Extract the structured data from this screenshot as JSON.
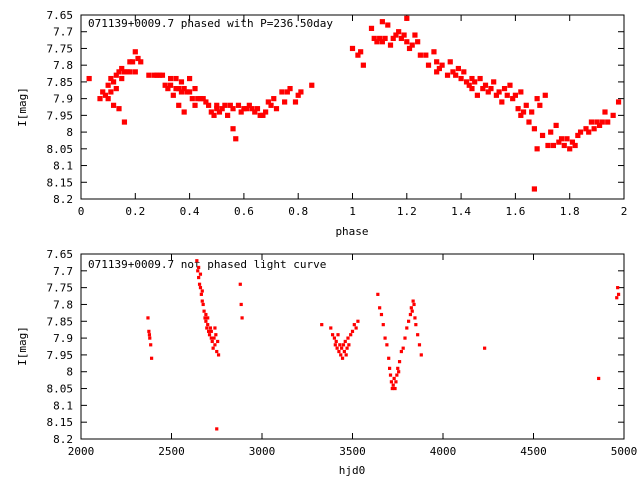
{
  "chart_data": [
    {
      "type": "scatter",
      "title": "071139+0009.7 phased with P=236.50day",
      "xlabel": "phase",
      "ylabel": "I[mag]",
      "xlim": [
        0,
        2
      ],
      "ylim": [
        8.2,
        7.65
      ],
      "y_inverted": true,
      "x_ticks": [
        0,
        0.2,
        0.4,
        0.6,
        0.8,
        1,
        1.2,
        1.4,
        1.6,
        1.8,
        2
      ],
      "x_tick_labels": [
        "0",
        "0.2",
        "0.4",
        "0.6",
        "0.8",
        "1",
        "1.2",
        "1.4",
        "1.6",
        "1.8",
        "2"
      ],
      "y_ticks": [
        7.65,
        7.7,
        7.75,
        7.8,
        7.85,
        7.9,
        7.95,
        8,
        8.05,
        8.1,
        8.15,
        8.2
      ],
      "y_tick_labels": [
        "7.65",
        "7.7",
        "7.75",
        "7.8",
        "7.85",
        "7.9",
        "7.95",
        "8",
        "8.05",
        "8.1",
        "8.15",
        "8.2"
      ],
      "marker_color": "#ff0000",
      "grid": false,
      "points": [
        [
          0.03,
          7.84
        ],
        [
          0.07,
          7.9
        ],
        [
          0.08,
          7.88
        ],
        [
          0.09,
          7.89
        ],
        [
          0.1,
          7.86
        ],
        [
          0.1,
          7.9
        ],
        [
          0.11,
          7.84
        ],
        [
          0.11,
          7.88
        ],
        [
          0.12,
          7.92
        ],
        [
          0.12,
          7.85
        ],
        [
          0.13,
          7.83
        ],
        [
          0.13,
          7.87
        ],
        [
          0.14,
          7.82
        ],
        [
          0.14,
          7.93
        ],
        [
          0.15,
          7.81
        ],
        [
          0.15,
          7.84
        ],
        [
          0.16,
          7.82
        ],
        [
          0.16,
          7.97
        ],
        [
          0.17,
          7.82
        ],
        [
          0.18,
          7.79
        ],
        [
          0.18,
          7.82
        ],
        [
          0.19,
          7.79
        ],
        [
          0.2,
          7.82
        ],
        [
          0.2,
          7.76
        ],
        [
          0.21,
          7.78
        ],
        [
          0.22,
          7.79
        ],
        [
          0.25,
          7.83
        ],
        [
          0.27,
          7.83
        ],
        [
          0.28,
          7.83
        ],
        [
          0.29,
          7.83
        ],
        [
          0.3,
          7.83
        ],
        [
          0.31,
          7.86
        ],
        [
          0.32,
          7.87
        ],
        [
          0.33,
          7.84
        ],
        [
          0.33,
          7.86
        ],
        [
          0.34,
          7.89
        ],
        [
          0.35,
          7.84
        ],
        [
          0.35,
          7.87
        ],
        [
          0.36,
          7.87
        ],
        [
          0.36,
          7.92
        ],
        [
          0.37,
          7.88
        ],
        [
          0.37,
          7.85
        ],
        [
          0.38,
          7.94
        ],
        [
          0.38,
          7.87
        ],
        [
          0.39,
          7.88
        ],
        [
          0.4,
          7.84
        ],
        [
          0.4,
          7.88
        ],
        [
          0.41,
          7.9
        ],
        [
          0.42,
          7.87
        ],
        [
          0.42,
          7.92
        ],
        [
          0.43,
          7.9
        ],
        [
          0.44,
          7.9
        ],
        [
          0.45,
          7.9
        ],
        [
          0.46,
          7.91
        ],
        [
          0.47,
          7.92
        ],
        [
          0.48,
          7.94
        ],
        [
          0.49,
          7.95
        ],
        [
          0.5,
          7.93
        ],
        [
          0.5,
          7.92
        ],
        [
          0.51,
          7.94
        ],
        [
          0.52,
          7.93
        ],
        [
          0.53,
          7.92
        ],
        [
          0.54,
          7.95
        ],
        [
          0.55,
          7.92
        ],
        [
          0.56,
          7.93
        ],
        [
          0.56,
          7.99
        ],
        [
          0.57,
          8.02
        ],
        [
          0.58,
          7.92
        ],
        [
          0.59,
          7.94
        ],
        [
          0.6,
          7.93
        ],
        [
          0.61,
          7.93
        ],
        [
          0.62,
          7.92
        ],
        [
          0.63,
          7.93
        ],
        [
          0.64,
          7.94
        ],
        [
          0.65,
          7.93
        ],
        [
          0.66,
          7.95
        ],
        [
          0.67,
          7.95
        ],
        [
          0.68,
          7.94
        ],
        [
          0.69,
          7.91
        ],
        [
          0.7,
          7.92
        ],
        [
          0.71,
          7.9
        ],
        [
          0.72,
          7.93
        ],
        [
          0.74,
          7.88
        ],
        [
          0.75,
          7.91
        ],
        [
          0.76,
          7.88
        ],
        [
          0.77,
          7.87
        ],
        [
          0.79,
          7.91
        ],
        [
          0.8,
          7.89
        ],
        [
          0.81,
          7.88
        ],
        [
          0.85,
          7.86
        ],
        [
          1.0,
          7.75
        ],
        [
          1.02,
          7.77
        ],
        [
          1.03,
          7.76
        ],
        [
          1.04,
          7.8
        ],
        [
          1.07,
          7.69
        ],
        [
          1.08,
          7.72
        ],
        [
          1.09,
          7.73
        ],
        [
          1.1,
          7.72
        ],
        [
          1.11,
          7.67
        ],
        [
          1.11,
          7.73
        ],
        [
          1.12,
          7.72
        ],
        [
          1.13,
          7.68
        ],
        [
          1.14,
          7.74
        ],
        [
          1.15,
          7.72
        ],
        [
          1.16,
          7.71
        ],
        [
          1.17,
          7.7
        ],
        [
          1.18,
          7.72
        ],
        [
          1.19,
          7.71
        ],
        [
          1.2,
          7.73
        ],
        [
          1.2,
          7.66
        ],
        [
          1.21,
          7.75
        ],
        [
          1.22,
          7.74
        ],
        [
          1.23,
          7.71
        ],
        [
          1.24,
          7.73
        ],
        [
          1.25,
          7.77
        ],
        [
          1.27,
          7.77
        ],
        [
          1.28,
          7.8
        ],
        [
          1.3,
          7.76
        ],
        [
          1.31,
          7.79
        ],
        [
          1.31,
          7.82
        ],
        [
          1.32,
          7.81
        ],
        [
          1.33,
          7.8
        ],
        [
          1.35,
          7.83
        ],
        [
          1.36,
          7.79
        ],
        [
          1.37,
          7.82
        ],
        [
          1.38,
          7.83
        ],
        [
          1.39,
          7.81
        ],
        [
          1.4,
          7.84
        ],
        [
          1.41,
          7.82
        ],
        [
          1.42,
          7.85
        ],
        [
          1.43,
          7.86
        ],
        [
          1.44,
          7.84
        ],
        [
          1.44,
          7.87
        ],
        [
          1.45,
          7.85
        ],
        [
          1.46,
          7.89
        ],
        [
          1.47,
          7.84
        ],
        [
          1.48,
          7.87
        ],
        [
          1.49,
          7.86
        ],
        [
          1.5,
          7.88
        ],
        [
          1.51,
          7.87
        ],
        [
          1.52,
          7.85
        ],
        [
          1.53,
          7.89
        ],
        [
          1.54,
          7.88
        ],
        [
          1.55,
          7.91
        ],
        [
          1.56,
          7.87
        ],
        [
          1.57,
          7.89
        ],
        [
          1.58,
          7.86
        ],
        [
          1.59,
          7.9
        ],
        [
          1.6,
          7.89
        ],
        [
          1.61,
          7.93
        ],
        [
          1.62,
          7.88
        ],
        [
          1.62,
          7.95
        ],
        [
          1.63,
          7.94
        ],
        [
          1.64,
          7.92
        ],
        [
          1.65,
          7.97
        ],
        [
          1.66,
          7.94
        ],
        [
          1.67,
          7.99
        ],
        [
          1.67,
          8.17
        ],
        [
          1.68,
          7.9
        ],
        [
          1.68,
          8.05
        ],
        [
          1.69,
          7.92
        ],
        [
          1.7,
          8.01
        ],
        [
          1.71,
          7.89
        ],
        [
          1.72,
          8.04
        ],
        [
          1.73,
          8.0
        ],
        [
          1.74,
          8.04
        ],
        [
          1.75,
          7.98
        ],
        [
          1.76,
          8.03
        ],
        [
          1.77,
          8.02
        ],
        [
          1.78,
          8.04
        ],
        [
          1.79,
          8.02
        ],
        [
          1.8,
          8.05
        ],
        [
          1.81,
          8.03
        ],
        [
          1.82,
          8.04
        ],
        [
          1.83,
          8.01
        ],
        [
          1.84,
          8.0
        ],
        [
          1.86,
          7.99
        ],
        [
          1.87,
          8.0
        ],
        [
          1.88,
          7.97
        ],
        [
          1.89,
          7.99
        ],
        [
          1.9,
          7.97
        ],
        [
          1.91,
          7.98
        ],
        [
          1.92,
          7.97
        ],
        [
          1.93,
          7.94
        ],
        [
          1.94,
          7.97
        ],
        [
          1.96,
          7.95
        ],
        [
          1.98,
          7.91
        ]
      ]
    },
    {
      "type": "scatter",
      "title": "071139+0009.7 not phased light curve",
      "xlabel": "hjd0",
      "ylabel": "I[mag]",
      "xlim": [
        2000,
        5000
      ],
      "ylim": [
        8.2,
        7.65
      ],
      "y_inverted": true,
      "x_ticks": [
        2000,
        2500,
        3000,
        3500,
        4000,
        4500,
        5000
      ],
      "x_tick_labels": [
        "2000",
        "2500",
        "3000",
        "3500",
        "4000",
        "4500",
        "5000"
      ],
      "y_ticks": [
        7.65,
        7.7,
        7.75,
        7.8,
        7.85,
        7.9,
        7.95,
        8,
        8.05,
        8.1,
        8.15,
        8.2
      ],
      "y_tick_labels": [
        "7.65",
        "7.7",
        "7.75",
        "7.8",
        "7.85",
        "7.9",
        "7.95",
        "8",
        "8.05",
        "8.1",
        "8.15",
        "8.2"
      ],
      "marker_color": "#ff0000",
      "grid": false,
      "points": [
        [
          2370,
          7.84
        ],
        [
          2375,
          7.88
        ],
        [
          2380,
          7.9
        ],
        [
          2385,
          7.92
        ],
        [
          2390,
          7.96
        ],
        [
          2378,
          7.89
        ],
        [
          2640,
          7.67
        ],
        [
          2645,
          7.7
        ],
        [
          2650,
          7.72
        ],
        [
          2655,
          7.74
        ],
        [
          2660,
          7.75
        ],
        [
          2665,
          7.77
        ],
        [
          2670,
          7.79
        ],
        [
          2675,
          7.8
        ],
        [
          2680,
          7.82
        ],
        [
          2685,
          7.84
        ],
        [
          2690,
          7.85
        ],
        [
          2695,
          7.87
        ],
        [
          2700,
          7.86
        ],
        [
          2705,
          7.88
        ],
        [
          2710,
          7.89
        ],
        [
          2715,
          7.87
        ],
        [
          2720,
          7.9
        ],
        [
          2725,
          7.91
        ],
        [
          2730,
          7.93
        ],
        [
          2735,
          7.9
        ],
        [
          2740,
          7.92
        ],
        [
          2745,
          7.89
        ],
        [
          2750,
          7.94
        ],
        [
          2755,
          7.91
        ],
        [
          2760,
          7.95
        ],
        [
          2650,
          7.69
        ],
        [
          2660,
          7.71
        ],
        [
          2670,
          7.76
        ],
        [
          2690,
          7.83
        ],
        [
          2700,
          7.84
        ],
        [
          2720,
          7.88
        ],
        [
          2740,
          7.87
        ],
        [
          2750,
          8.17
        ],
        [
          2880,
          7.74
        ],
        [
          2885,
          7.8
        ],
        [
          2890,
          7.84
        ],
        [
          3330,
          7.86
        ],
        [
          3380,
          7.87
        ],
        [
          3390,
          7.89
        ],
        [
          3400,
          7.9
        ],
        [
          3405,
          7.92
        ],
        [
          3410,
          7.91
        ],
        [
          3415,
          7.93
        ],
        [
          3420,
          7.89
        ],
        [
          3425,
          7.94
        ],
        [
          3430,
          7.92
        ],
        [
          3435,
          7.95
        ],
        [
          3440,
          7.93
        ],
        [
          3445,
          7.96
        ],
        [
          3450,
          7.92
        ],
        [
          3455,
          7.94
        ],
        [
          3460,
          7.91
        ],
        [
          3465,
          7.95
        ],
        [
          3470,
          7.93
        ],
        [
          3475,
          7.9
        ],
        [
          3480,
          7.92
        ],
        [
          3490,
          7.89
        ],
        [
          3500,
          7.88
        ],
        [
          3510,
          7.86
        ],
        [
          3520,
          7.87
        ],
        [
          3530,
          7.85
        ],
        [
          3640,
          7.77
        ],
        [
          3650,
          7.81
        ],
        [
          3660,
          7.83
        ],
        [
          3670,
          7.86
        ],
        [
          3680,
          7.9
        ],
        [
          3690,
          7.92
        ],
        [
          3700,
          7.96
        ],
        [
          3705,
          7.99
        ],
        [
          3710,
          8.01
        ],
        [
          3715,
          8.03
        ],
        [
          3720,
          8.05
        ],
        [
          3725,
          8.04
        ],
        [
          3730,
          8.02
        ],
        [
          3735,
          8.05
        ],
        [
          3740,
          8.03
        ],
        [
          3745,
          8.01
        ],
        [
          3750,
          7.99
        ],
        [
          3755,
          8.0
        ],
        [
          3760,
          7.97
        ],
        [
          3770,
          7.94
        ],
        [
          3780,
          7.93
        ],
        [
          3790,
          7.9
        ],
        [
          3800,
          7.87
        ],
        [
          3810,
          7.85
        ],
        [
          3820,
          7.83
        ],
        [
          3825,
          7.81
        ],
        [
          3830,
          7.82
        ],
        [
          3835,
          7.79
        ],
        [
          3840,
          7.8
        ],
        [
          3845,
          7.84
        ],
        [
          3850,
          7.86
        ],
        [
          3860,
          7.89
        ],
        [
          3870,
          7.92
        ],
        [
          3880,
          7.95
        ],
        [
          4230,
          7.93
        ],
        [
          4860,
          8.02
        ],
        [
          4960,
          7.78
        ],
        [
          4965,
          7.75
        ],
        [
          4970,
          7.77
        ]
      ]
    }
  ]
}
